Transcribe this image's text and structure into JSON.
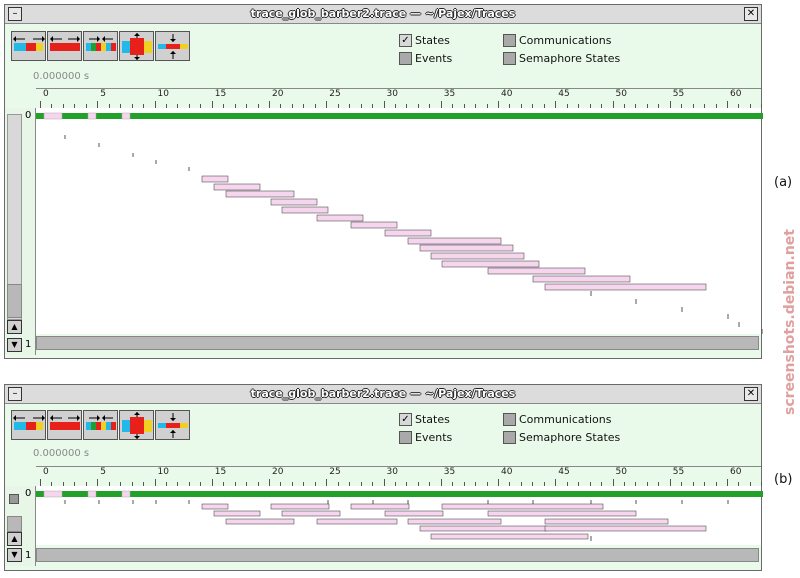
{
  "windows": [
    {
      "id": "a",
      "title": "trace_glob_barber2.trace — ~/Pajex/Traces",
      "time_display": "0.000000 s",
      "checkboxes": [
        {
          "label": "States",
          "checked": true
        },
        {
          "label": "Events",
          "checked": false
        },
        {
          "label": "Communications",
          "checked": false
        },
        {
          "label": "Semaphore States",
          "checked": false
        }
      ],
      "ruler_labels": [
        "0",
        "5",
        "10",
        "15",
        "20",
        "25",
        "30",
        "35",
        "40",
        "45",
        "50",
        "55",
        "60"
      ],
      "row_labels": [
        "0",
        "1"
      ],
      "caption": "(a)"
    },
    {
      "id": "b",
      "title": "trace_glob_barber2.trace — ~/Pajex/Traces",
      "time_display": "0.000000 s",
      "checkboxes": [
        {
          "label": "States",
          "checked": true
        },
        {
          "label": "Events",
          "checked": false
        },
        {
          "label": "Communications",
          "checked": false
        },
        {
          "label": "Semaphore States",
          "checked": false
        }
      ],
      "ruler_labels": [
        "0",
        "5",
        "10",
        "15",
        "20",
        "25",
        "30",
        "35",
        "40",
        "45",
        "50",
        "55",
        "60"
      ],
      "row_labels": [
        "0",
        "1"
      ],
      "caption": "(b)"
    }
  ],
  "toolbar_icons": [
    "zoom-out-horizontal-icon",
    "zoom-in-horizontal-icon",
    "shrink-fit-icon",
    "zoom-in-vertical-icon",
    "zoom-out-vertical-icon"
  ],
  "watermark": "screenshots.debian.net",
  "colors": {
    "state_green": "#22a02a",
    "state_pink": "#f6d6ee",
    "window_bg": "#eafaea"
  }
}
